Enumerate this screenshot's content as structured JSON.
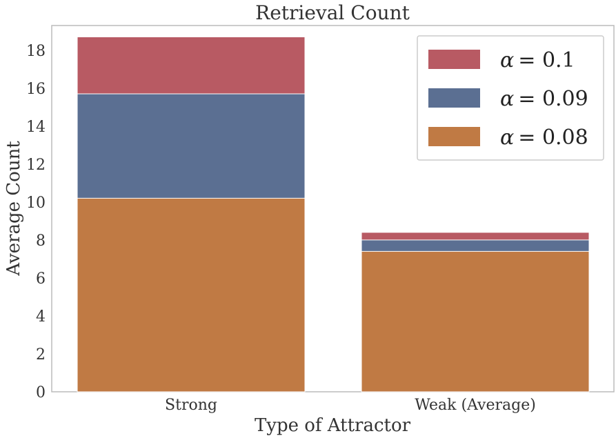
{
  "chart_data": {
    "type": "bar",
    "stacked": true,
    "title": "Retrieval Count",
    "xlabel": "Type of Attractor",
    "ylabel": "Average Count",
    "categories": [
      "Strong",
      "Weak (Average)"
    ],
    "y_ticks": [
      "0",
      "2",
      "4",
      "6",
      "8",
      "10",
      "12",
      "14",
      "16",
      "18"
    ],
    "ylim": [
      0,
      19.3
    ],
    "grid": false,
    "legend_position": "top-right",
    "series": [
      {
        "name": "α = 0.1",
        "symbol": "α",
        "eq": "= 0.1",
        "color": "#b85a63",
        "total": [
          18.7,
          8.4
        ]
      },
      {
        "name": "α = 0.09",
        "symbol": "α",
        "eq": "= 0.09",
        "color": "#5b6f92",
        "total": [
          15.7,
          8.0
        ]
      },
      {
        "name": "α = 0.08",
        "symbol": "α",
        "eq": "= 0.08",
        "color": "#c07a44",
        "total": [
          10.2,
          7.4
        ]
      }
    ]
  }
}
